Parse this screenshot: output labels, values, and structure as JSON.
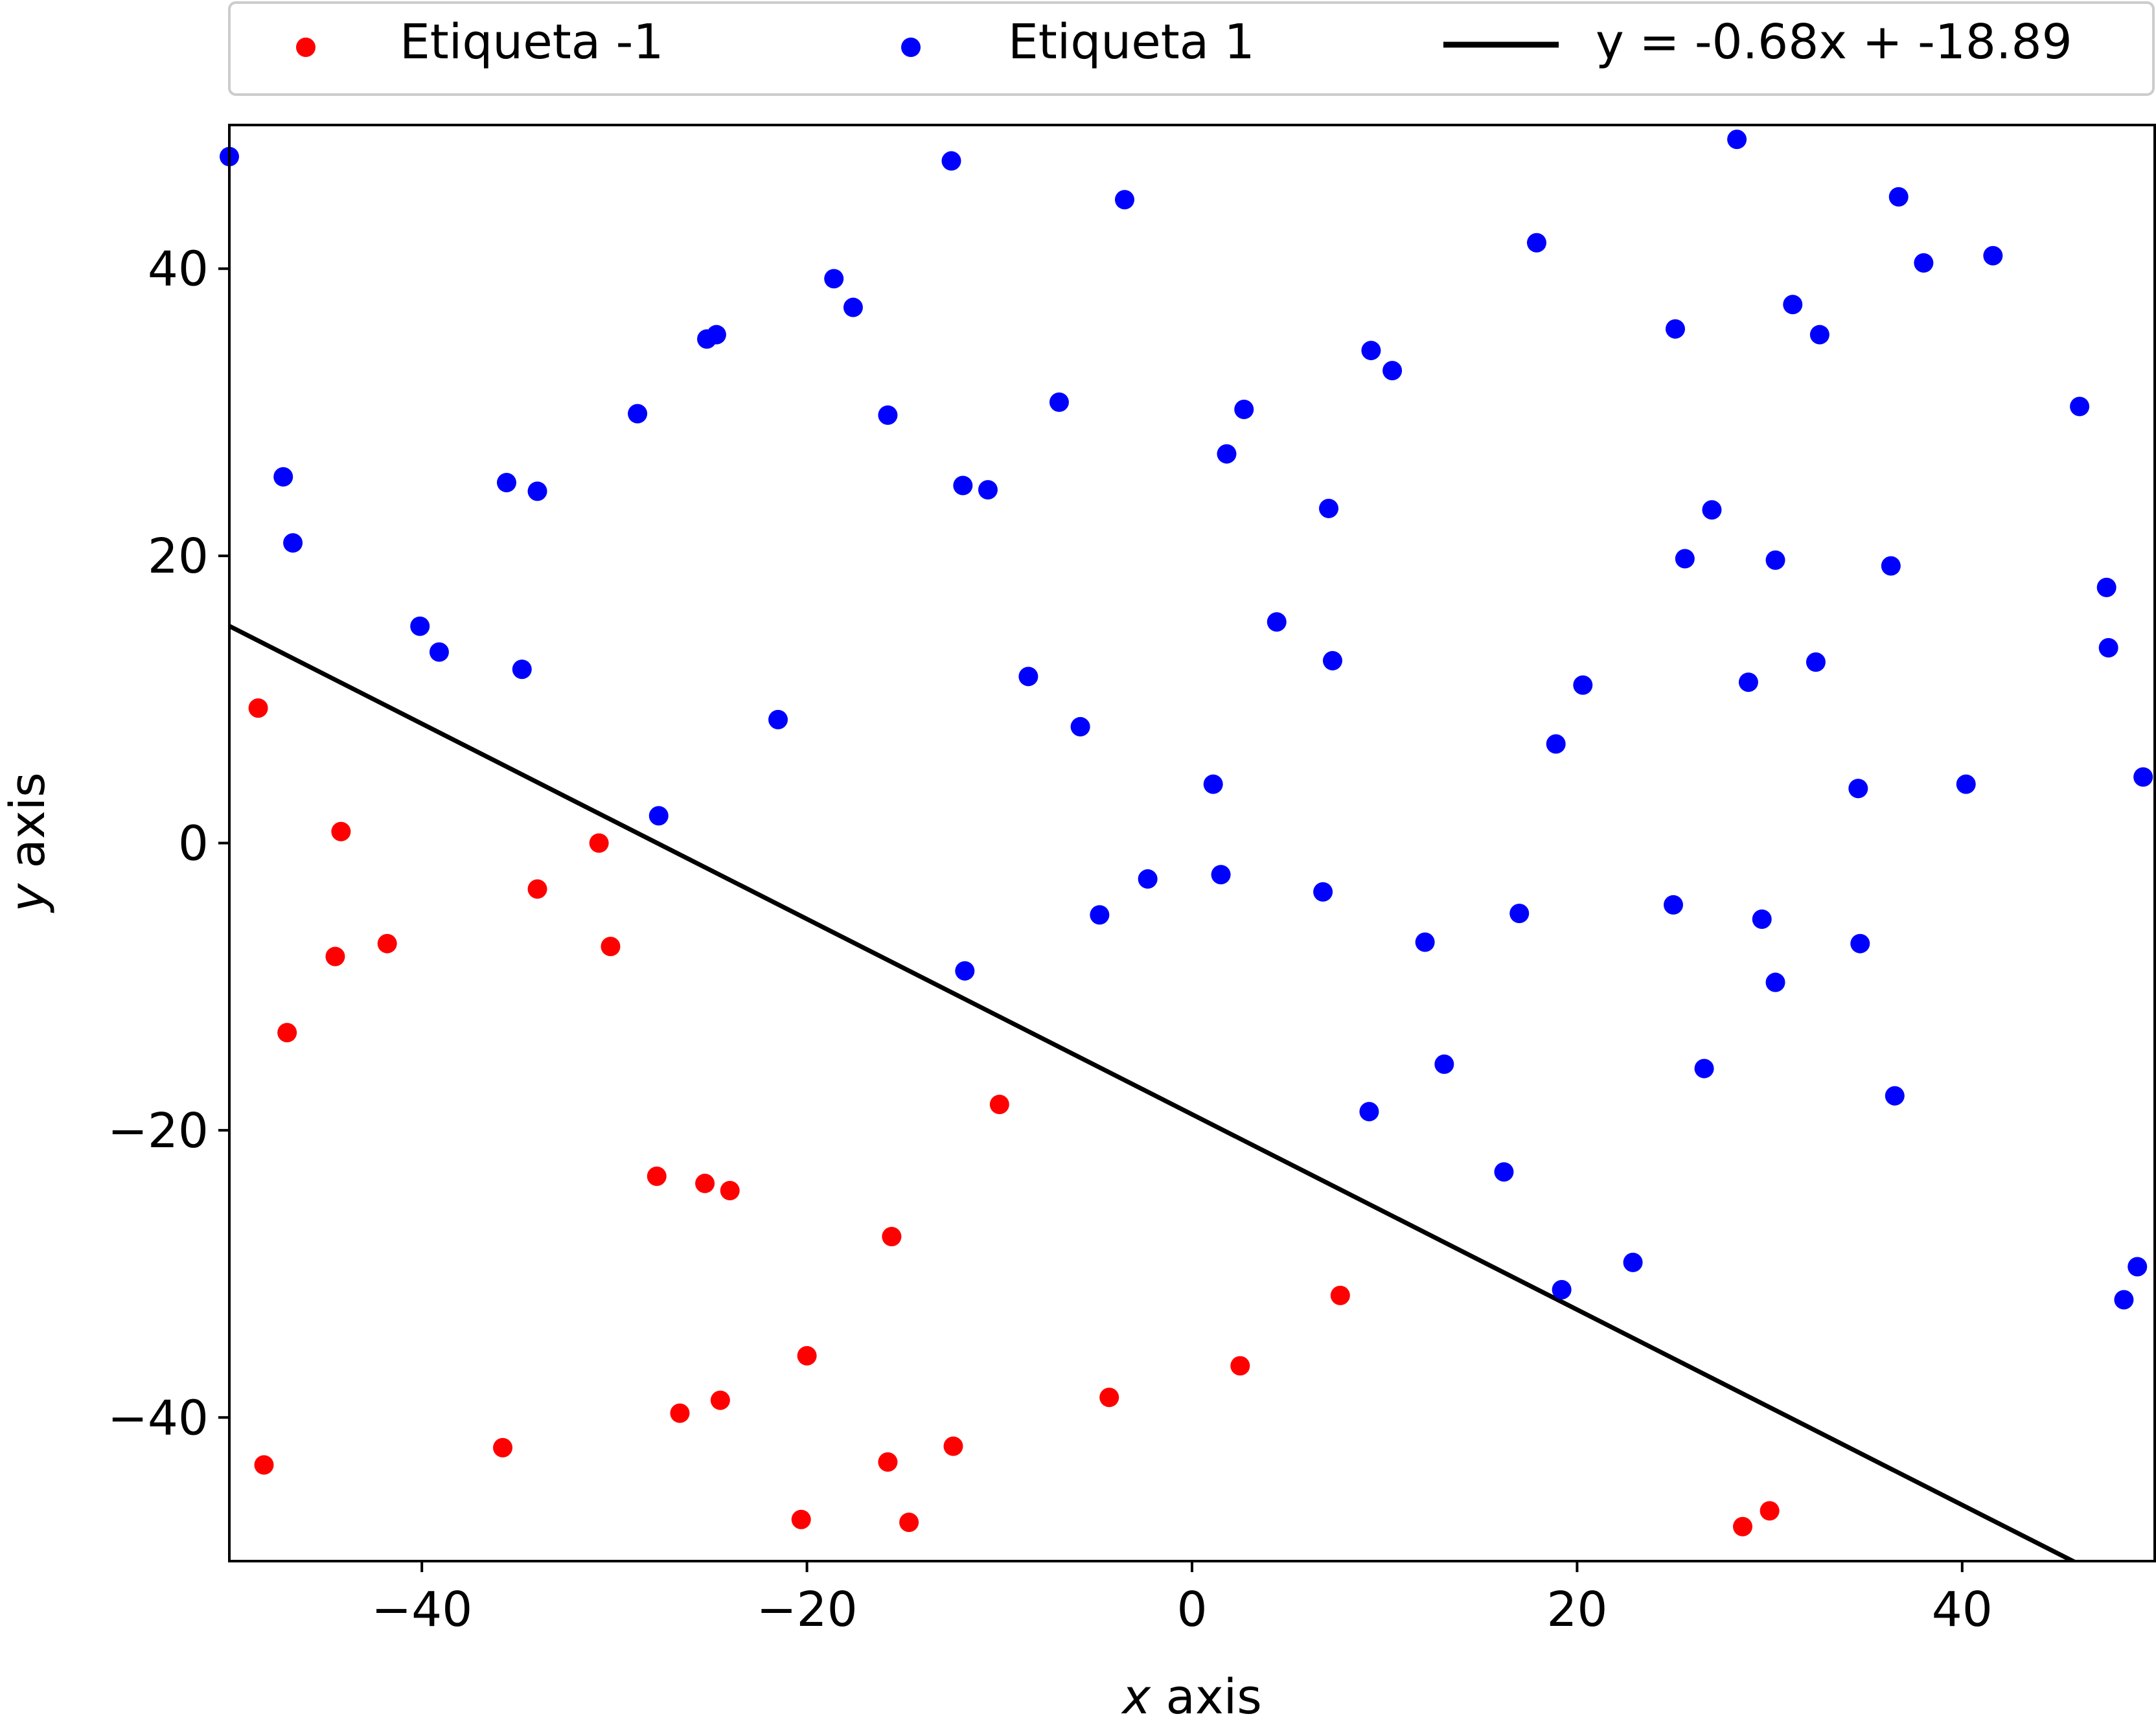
{
  "chart_data": {
    "type": "scatter",
    "xlabel_italic": "x",
    "xlabel_rest": " axis",
    "ylabel_italic": "y",
    "ylabel_rest": " axis",
    "xlim": [
      -50,
      50
    ],
    "ylim": [
      -50,
      50
    ],
    "xticks": [
      -40,
      -20,
      0,
      20,
      40
    ],
    "yticks": [
      -40,
      -20,
      0,
      20,
      40
    ],
    "xtick_labels": [
      "−40",
      "−20",
      "0",
      "20",
      "40"
    ],
    "ytick_labels": [
      "−40",
      "−20",
      "0",
      "20",
      "40"
    ],
    "grid": false,
    "legend_position": "top, above plot",
    "series": [
      {
        "name": "Etiqueta -1",
        "color": "#ff0000",
        "marker": "circle",
        "points": [
          [
            -48.5,
            9.4
          ],
          [
            -44.2,
            0.8
          ],
          [
            -30.8,
            0.0
          ],
          [
            -34.0,
            -3.2
          ],
          [
            -41.8,
            -7.0
          ],
          [
            -44.5,
            -7.9
          ],
          [
            -30.2,
            -7.2
          ],
          [
            -47.0,
            -13.2
          ],
          [
            -10.0,
            -18.2
          ],
          [
            -27.8,
            -23.2
          ],
          [
            -25.3,
            -23.7
          ],
          [
            -24.0,
            -24.2
          ],
          [
            -15.6,
            -27.4
          ],
          [
            7.7,
            -31.5
          ],
          [
            -20.0,
            -35.7
          ],
          [
            2.5,
            -36.4
          ],
          [
            -26.6,
            -39.7
          ],
          [
            -24.5,
            -38.8
          ],
          [
            -4.3,
            -38.6
          ],
          [
            -35.8,
            -42.1
          ],
          [
            -12.4,
            -42.0
          ],
          [
            -15.8,
            -43.1
          ],
          [
            -48.2,
            -43.3
          ],
          [
            -20.3,
            -47.1
          ],
          [
            -14.7,
            -47.3
          ],
          [
            28.6,
            -47.6
          ],
          [
            30.0,
            -46.5
          ]
        ]
      },
      {
        "name": "Etiqueta 1",
        "color": "#0000ff",
        "marker": "circle",
        "points": [
          [
            -50.0,
            47.8
          ],
          [
            -12.5,
            47.5
          ],
          [
            -3.5,
            44.8
          ],
          [
            28.3,
            49.0
          ],
          [
            36.7,
            45.0
          ],
          [
            17.9,
            41.8
          ],
          [
            41.6,
            40.9
          ],
          [
            38.0,
            40.4
          ],
          [
            -18.6,
            39.3
          ],
          [
            -17.6,
            37.3
          ],
          [
            31.2,
            37.5
          ],
          [
            25.1,
            35.8
          ],
          [
            32.6,
            35.4
          ],
          [
            -24.7,
            35.4
          ],
          [
            -25.2,
            35.1
          ],
          [
            9.3,
            34.3
          ],
          [
            10.4,
            32.9
          ],
          [
            -6.9,
            30.7
          ],
          [
            2.7,
            30.2
          ],
          [
            -28.8,
            29.9
          ],
          [
            -15.8,
            29.8
          ],
          [
            46.1,
            30.4
          ],
          [
            1.8,
            27.1
          ],
          [
            -47.2,
            25.5
          ],
          [
            -35.6,
            25.1
          ],
          [
            -34.0,
            24.5
          ],
          [
            -11.9,
            24.9
          ],
          [
            -10.6,
            24.6
          ],
          [
            7.1,
            23.3
          ],
          [
            27.0,
            23.2
          ],
          [
            -46.7,
            20.9
          ],
          [
            25.6,
            19.8
          ],
          [
            30.3,
            19.7
          ],
          [
            36.3,
            19.3
          ],
          [
            47.5,
            17.8
          ],
          [
            -40.1,
            15.1
          ],
          [
            4.4,
            15.4
          ],
          [
            -39.1,
            13.3
          ],
          [
            -34.8,
            12.1
          ],
          [
            7.3,
            12.7
          ],
          [
            47.6,
            13.6
          ],
          [
            -8.5,
            11.6
          ],
          [
            20.3,
            11.0
          ],
          [
            28.9,
            11.2
          ],
          [
            32.4,
            12.6
          ],
          [
            -21.5,
            8.6
          ],
          [
            -5.8,
            8.1
          ],
          [
            18.9,
            6.9
          ],
          [
            1.1,
            4.1
          ],
          [
            34.6,
            3.8
          ],
          [
            40.2,
            4.1
          ],
          [
            49.4,
            4.6
          ],
          [
            -27.7,
            1.9
          ],
          [
            1.5,
            -2.2
          ],
          [
            -2.3,
            -2.5
          ],
          [
            6.8,
            -3.4
          ],
          [
            -4.8,
            -5.0
          ],
          [
            17.0,
            -4.9
          ],
          [
            25.0,
            -4.3
          ],
          [
            29.6,
            -5.3
          ],
          [
            12.1,
            -6.9
          ],
          [
            34.7,
            -7.0
          ],
          [
            -11.8,
            -8.9
          ],
          [
            30.3,
            -9.7
          ],
          [
            13.1,
            -15.4
          ],
          [
            26.6,
            -15.7
          ],
          [
            36.5,
            -17.6
          ],
          [
            9.2,
            -18.7
          ],
          [
            16.2,
            -22.9
          ],
          [
            22.9,
            -29.2
          ],
          [
            19.2,
            -31.1
          ],
          [
            49.1,
            -29.5
          ],
          [
            48.4,
            -31.8
          ]
        ]
      }
    ],
    "fit_line": {
      "name": "y = -0.68x + -18.89",
      "slope": -0.68,
      "intercept": -18.89,
      "color": "#000000"
    }
  }
}
